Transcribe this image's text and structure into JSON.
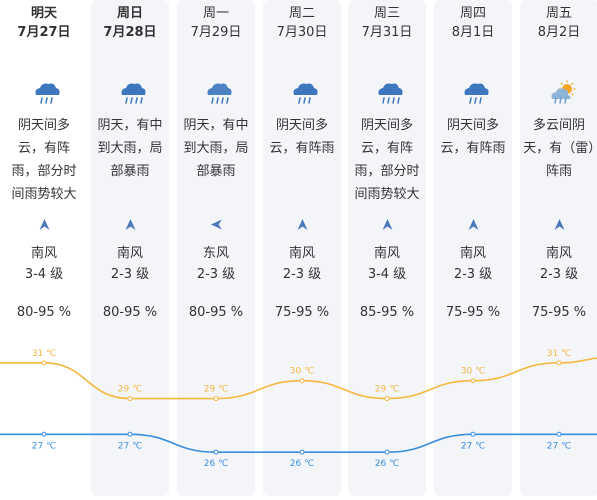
{
  "colors": {
    "high_line": "#f5b73e",
    "low_line": "#3a8ee0",
    "column_bg": "#f3f5f9",
    "text": "#333333",
    "wind_arrow": "#4a78b8",
    "cloud_dark": "#3d78be",
    "sun": "#f5a623"
  },
  "days": [
    {
      "weekday": "明天",
      "date": "7月27日",
      "icon": "cloud-rain-icon",
      "desc": "阴天间多云，有阵雨，部分时间雨势较大",
      "wind_dir": "south",
      "wind_name": "南风",
      "wind_level": "3-4 级",
      "humidity": "80-95 %",
      "high": "31 ℃",
      "low": "27 ℃",
      "bold": true
    },
    {
      "weekday": "周日",
      "date": "7月28日",
      "icon": "cloud-heavy-rain-icon",
      "desc": "阴天，有中到大雨，局部暴雨",
      "wind_dir": "south",
      "wind_name": "南风",
      "wind_level": "2-3 级",
      "humidity": "80-95 %",
      "high": "29 ℃",
      "low": "27 ℃",
      "bold": true
    },
    {
      "weekday": "周一",
      "date": "7月29日",
      "icon": "cloud-storm-rain-icon",
      "desc": "阴天，有中到大雨，局部暴雨",
      "wind_dir": "east",
      "wind_name": "东风",
      "wind_level": "2-3 级",
      "humidity": "80-95 %",
      "high": "29 ℃",
      "low": "26 ℃",
      "bold": false
    },
    {
      "weekday": "周二",
      "date": "7月30日",
      "icon": "cloud-rain-icon",
      "desc": "阴天间多云，有阵雨",
      "wind_dir": "south",
      "wind_name": "南风",
      "wind_level": "2-3 级",
      "humidity": "75-95 %",
      "high": "30 ℃",
      "low": "26 ℃",
      "bold": false
    },
    {
      "weekday": "周三",
      "date": "7月31日",
      "icon": "cloud-heavy-rain-icon",
      "desc": "阴天间多云，有阵雨，部分时间雨势较大",
      "wind_dir": "south",
      "wind_name": "南风",
      "wind_level": "3-4 级",
      "humidity": "85-95 %",
      "high": "29 ℃",
      "low": "26 ℃",
      "bold": false
    },
    {
      "weekday": "周四",
      "date": "8月1日",
      "icon": "cloud-rain-icon",
      "desc": "阴天间多云，有阵雨",
      "wind_dir": "south",
      "wind_name": "南风",
      "wind_level": "2-3 级",
      "humidity": "75-95 %",
      "high": "30 ℃",
      "low": "27 ℃",
      "bold": false
    },
    {
      "weekday": "周五",
      "date": "8月2日",
      "icon": "sun-cloud-rain-icon",
      "desc": "多云间阴天，有（雷）阵雨",
      "wind_dir": "south",
      "wind_name": "南风",
      "wind_level": "2-3 级",
      "humidity": "75-95 %",
      "high": "31 ℃",
      "low": "27 ℃",
      "bold": false
    }
  ],
  "chart_data": {
    "type": "line",
    "categories": [
      "7月27日",
      "7月28日",
      "7月29日",
      "7月30日",
      "7月31日",
      "8月1日",
      "8月2日"
    ],
    "series": [
      {
        "name": "",
        "values": [
          31,
          29,
          29,
          30,
          29,
          30,
          31
        ]
      },
      {
        "name": "",
        "values": [
          27,
          27,
          26,
          26,
          26,
          27,
          27
        ]
      }
    ],
    "ylim": [
      25,
      32
    ],
    "grid": false
  }
}
